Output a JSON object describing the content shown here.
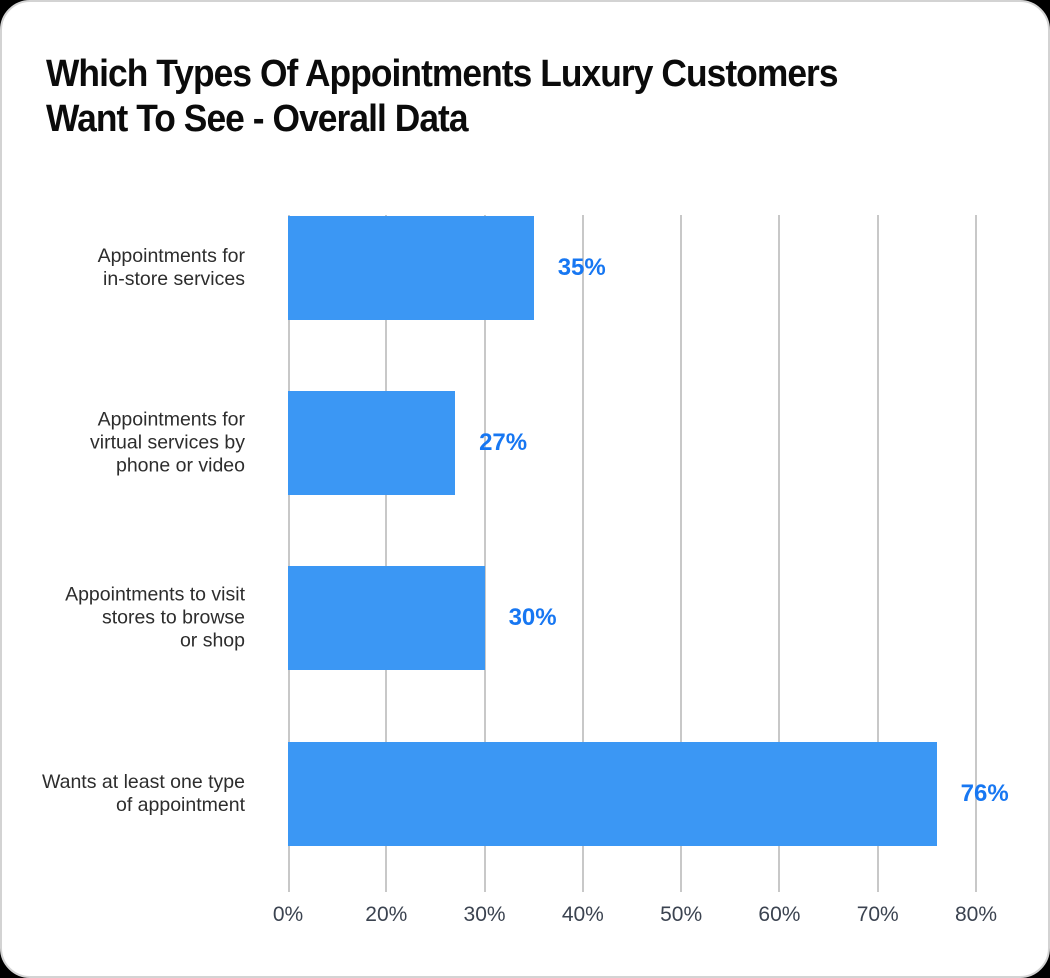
{
  "page": {
    "background_color": "#000000",
    "card_background_color": "#ffffff",
    "card_border_color": "#d3d3d3"
  },
  "title": "Which Types Of Appointments Luxury Customers Want To See - Overall Data",
  "title_lines": [
    "Which Types Of Appointments Luxury Customers",
    "Want To See - Overall Data"
  ],
  "chart_data": {
    "type": "bar",
    "orientation": "horizontal",
    "title": "Which Types Of Appointments Luxury Customers Want To See - Overall Data",
    "categories": [
      "Appointments for in-store services",
      "Appointments for virtual services by phone or video",
      "Appointments to visit stores to browse or shop",
      "Wants at least one type of appointment"
    ],
    "category_lines": [
      [
        "Appointments for",
        "in-store services"
      ],
      [
        "Appointments for",
        "virtual services by",
        "phone or video"
      ],
      [
        "Appointments to visit",
        "stores to browse",
        "or shop"
      ],
      [
        "Wants at least one type",
        "of appointment"
      ]
    ],
    "values": [
      35,
      27,
      30,
      76
    ],
    "value_labels": [
      "35%",
      "27%",
      "30%",
      "76%"
    ],
    "x_tick_labels": [
      "0%",
      "20%",
      "30%",
      "40%",
      "50%",
      "60%",
      "70%",
      "80%"
    ],
    "x_tick_values": [
      0,
      20,
      30,
      40,
      50,
      60,
      70,
      80
    ],
    "axis_note": "x ticks are evenly spaced; 10% tick is absent",
    "grid": true,
    "legend": false,
    "colors": {
      "bar": "#3b97f4",
      "value_label": "#1777f2",
      "gridline": "#c8c8c8",
      "tick_label": "#3b4350",
      "category_label": "#2d2d2d",
      "title": "#0b0b0b"
    }
  }
}
